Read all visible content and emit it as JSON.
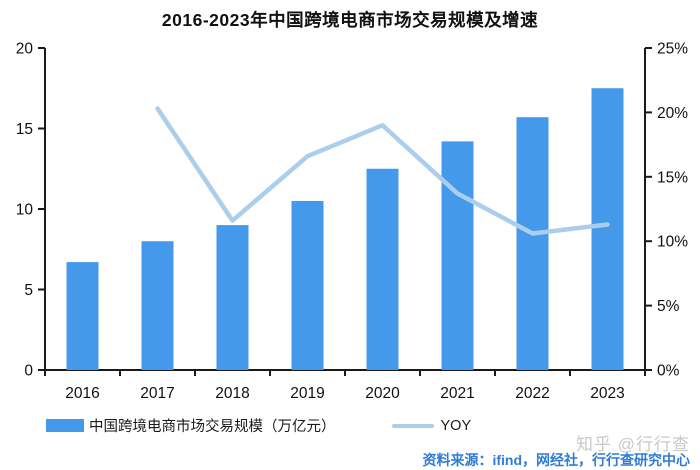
{
  "title": "2016-2023年中国跨境电商市场交易规模及增速",
  "chart_data": {
    "type": "bar",
    "subtype": "bar+line combo with dual y-axes",
    "title": "2016-2023年中国跨境电商市场交易规模及增速",
    "categories": [
      "2016",
      "2017",
      "2018",
      "2019",
      "2020",
      "2021",
      "2022",
      "2023"
    ],
    "series": [
      {
        "name": "中国跨境电商市场交易规模（万亿元）",
        "type": "bar",
        "axis": "left",
        "color": "#4499EA",
        "values": [
          6.7,
          8.0,
          9.0,
          10.5,
          12.5,
          14.2,
          15.7,
          17.5
        ]
      },
      {
        "name": "YOY",
        "type": "line",
        "axis": "right",
        "unit": "%",
        "color": "#ABCEEC",
        "values": [
          null,
          20.3,
          11.6,
          16.6,
          19.0,
          13.7,
          10.6,
          11.3
        ]
      }
    ],
    "left_axis": {
      "min": 0,
      "max": 20,
      "tick_step": 5,
      "tick_labels": [
        "0",
        "5",
        "10",
        "15",
        "20"
      ]
    },
    "right_axis": {
      "min": 0,
      "max": 25,
      "tick_step": 5,
      "tick_labels": [
        "0%",
        "5%",
        "10%",
        "15%",
        "20%",
        "25%"
      ]
    },
    "grid": false,
    "legend_position": "bottom-left",
    "axis_color": "#1A1A1A",
    "text_color": "#111111"
  },
  "legend": {
    "bar_label": "中国跨境电商市场交易规模（万亿元）",
    "line_label": "YOY"
  },
  "footer": {
    "watermark": "知乎 @行行查",
    "watermark_color": "#C9C9C9",
    "source": "资料来源：ifind，网经社，行行查研究中心",
    "source_color": "#2E7CD5"
  }
}
